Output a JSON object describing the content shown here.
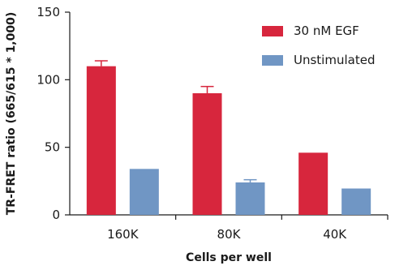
{
  "chart_data": {
    "type": "bar",
    "categories": [
      "160K",
      "80K",
      "40K"
    ],
    "series": [
      {
        "name": "30 nM EGF",
        "color": "#d7263d",
        "values": [
          110,
          90,
          46
        ],
        "errors": [
          4,
          5,
          0
        ]
      },
      {
        "name": "Unstimulated",
        "color": "#7096c4",
        "values": [
          34,
          24,
          19.5
        ],
        "errors": [
          0,
          2,
          0
        ]
      }
    ],
    "xlabel": "Cells per well",
    "ylabel": "TR-FRET ratio (665/615 * 1,000)",
    "ylim": [
      0,
      150
    ],
    "yticks": [
      0,
      50,
      100,
      150
    ],
    "grid": false,
    "legend_position": "top-right"
  }
}
